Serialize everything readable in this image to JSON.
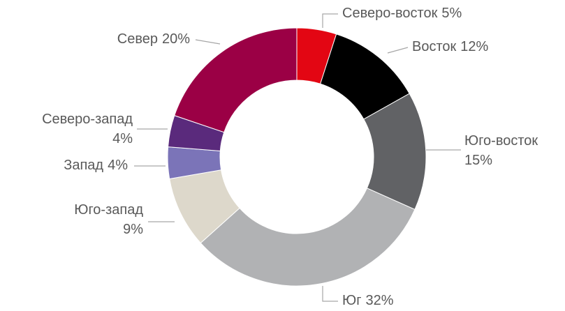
{
  "chart_data": {
    "type": "donut",
    "categories": [
      "Северо-восток",
      "Восток",
      "Юго-восток",
      "Юг",
      "Юго-запад",
      "Запад",
      "Северо-запад",
      "Север"
    ],
    "values": [
      5,
      12,
      15,
      32,
      9,
      4,
      4,
      20
    ],
    "value_labels": [
      "5%",
      "12%",
      "15%",
      "32%",
      "9%",
      "4%",
      "4%",
      "20%"
    ],
    "colors": [
      "#e30613",
      "#000000",
      "#616265",
      "#b1b2b4",
      "#ddd8cb",
      "#7b74b8",
      "#5a2a7c",
      "#9b0045"
    ]
  }
}
